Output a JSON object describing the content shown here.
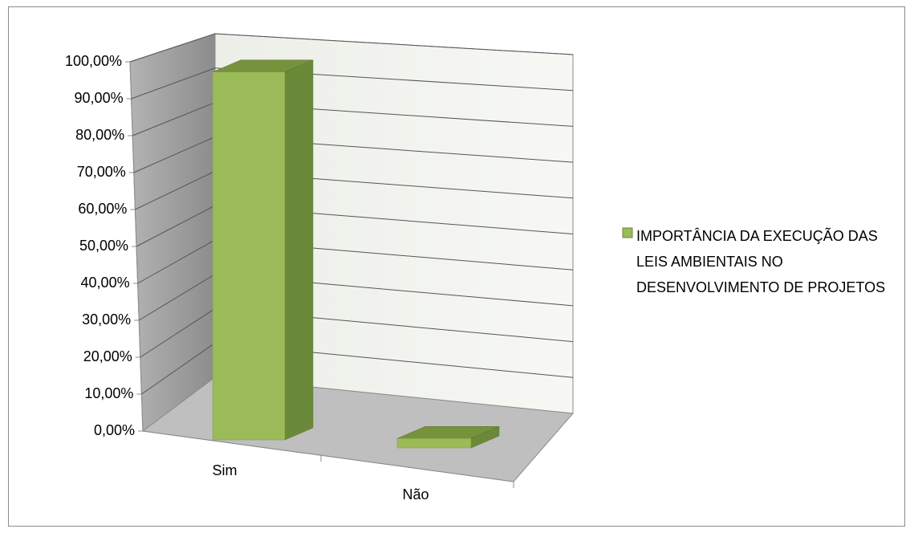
{
  "chart_data": {
    "type": "bar3d",
    "categories": [
      "Sim",
      "Não"
    ],
    "series": [
      {
        "name": "IMPORTÂNCIA DA EXECUÇÃO DAS LEIS AMBIENTAIS NO DESENVOLVIMENTO DE PROJETOS",
        "color": "#9bbb59",
        "values": [
          97.5,
          2.5
        ]
      }
    ],
    "ylim": [
      0,
      100
    ],
    "yticks": [
      {
        "value": 0,
        "label": "0,00%"
      },
      {
        "value": 10,
        "label": "10,00%"
      },
      {
        "value": 20,
        "label": "20,00%"
      },
      {
        "value": 30,
        "label": "30,00%"
      },
      {
        "value": 40,
        "label": "40,00%"
      },
      {
        "value": 50,
        "label": "50,00%"
      },
      {
        "value": 60,
        "label": "60,00%"
      },
      {
        "value": 70,
        "label": "70,00%"
      },
      {
        "value": 80,
        "label": "80,00%"
      },
      {
        "value": 90,
        "label": "90,00%"
      },
      {
        "value": 100,
        "label": "100,00%"
      }
    ],
    "grid": true,
    "legend": "right"
  }
}
